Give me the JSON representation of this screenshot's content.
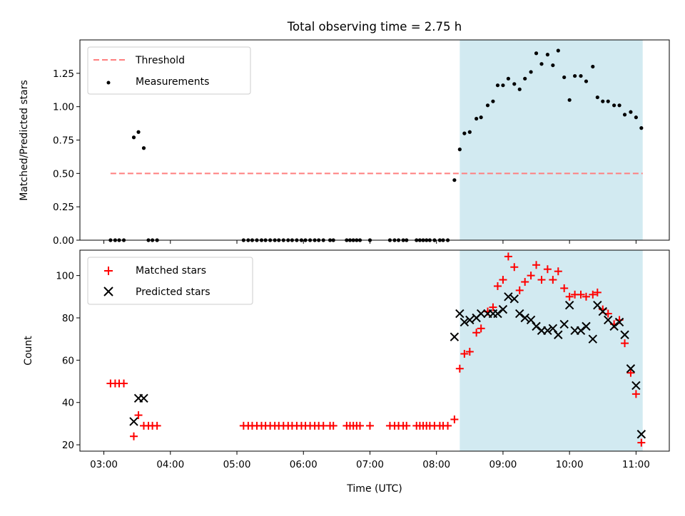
{
  "title": "Total observing time = 2.75 h",
  "xlabel": "Time (UTC)",
  "x_ticks": [
    "03:00",
    "04:00",
    "05:00",
    "06:00",
    "07:00",
    "08:00",
    "09:00",
    "10:00",
    "11:00"
  ],
  "x_tick_values": [
    3,
    4,
    5,
    6,
    7,
    8,
    9,
    10,
    11
  ],
  "colors": {
    "span": "#add8e6",
    "threshold": "#ff7f7f",
    "measurement": "#000000",
    "matched": "#ff0000",
    "predicted": "#000000"
  },
  "chart_data": [
    {
      "type": "scatter",
      "panel": "top",
      "ylabel": "Matched/Predicted stars",
      "xlim": [
        2.64,
        11.5
      ],
      "ylim": [
        0,
        1.5
      ],
      "yticks": [
        "0.00",
        "0.25",
        "0.50",
        "0.75",
        "1.00",
        "1.25"
      ],
      "ytick_values": [
        0,
        0.25,
        0.5,
        0.75,
        1.0,
        1.25
      ],
      "grid": false,
      "legend_placement": "top-left",
      "shaded_span": [
        8.35,
        11.1
      ],
      "threshold": {
        "name": "Threshold",
        "y": 0.5,
        "x_range": [
          3.1,
          11.1
        ]
      },
      "series": [
        {
          "name": "Measurements",
          "x": [
            3.1,
            3.17,
            3.23,
            3.3,
            3.45,
            3.52,
            3.6,
            3.67,
            3.73,
            3.8,
            5.1,
            5.17,
            5.23,
            5.3,
            5.37,
            5.43,
            5.5,
            5.57,
            5.63,
            5.7,
            5.77,
            5.83,
            5.9,
            5.97,
            6.03,
            6.1,
            6.17,
            6.23,
            6.3,
            6.4,
            6.45,
            6.65,
            6.7,
            6.75,
            6.8,
            6.85,
            7.0,
            7.3,
            7.37,
            7.43,
            7.5,
            7.55,
            7.7,
            7.75,
            7.8,
            7.85,
            7.9,
            7.97,
            8.05,
            8.1,
            8.17,
            8.27,
            8.35,
            8.42,
            8.5,
            8.6,
            8.67,
            8.77,
            8.85,
            8.92,
            9.0,
            9.08,
            9.17,
            9.25,
            9.33,
            9.42,
            9.5,
            9.58,
            9.67,
            9.75,
            9.83,
            9.92,
            10.0,
            10.08,
            10.17,
            10.25,
            10.35,
            10.42,
            10.5,
            10.58,
            10.67,
            10.75,
            10.83,
            10.92,
            11.0,
            11.08
          ],
          "y": [
            0,
            0,
            0,
            0,
            0.77,
            0.81,
            0.69,
            0,
            0,
            0,
            0,
            0,
            0,
            0,
            0,
            0,
            0,
            0,
            0,
            0,
            0,
            0,
            0,
            0,
            0,
            0,
            0,
            0,
            0,
            0,
            0,
            0,
            0,
            0,
            0,
            0,
            0,
            0,
            0,
            0,
            0,
            0,
            0,
            0,
            0,
            0,
            0,
            0,
            0,
            0,
            0,
            0.45,
            0.68,
            0.8,
            0.81,
            0.91,
            0.92,
            1.01,
            1.04,
            1.16,
            1.16,
            1.21,
            1.17,
            1.13,
            1.21,
            1.26,
            1.4,
            1.32,
            1.39,
            1.31,
            1.42,
            1.22,
            1.05,
            1.23,
            1.23,
            1.19,
            1.3,
            1.07,
            1.04,
            1.04,
            1.01,
            1.01,
            0.94,
            0.96,
            0.92,
            0.84
          ]
        }
      ]
    },
    {
      "type": "scatter",
      "panel": "bottom",
      "ylabel": "Count",
      "xlim": [
        2.64,
        11.5
      ],
      "ylim": [
        17,
        112
      ],
      "yticks": [
        "20",
        "40",
        "60",
        "80",
        "100"
      ],
      "ytick_values": [
        20,
        40,
        60,
        80,
        100
      ],
      "grid": false,
      "legend_placement": "top-left",
      "shaded_span": [
        8.35,
        11.1
      ],
      "series": [
        {
          "name": "Matched stars",
          "x": [
            3.1,
            3.17,
            3.23,
            3.3,
            3.45,
            3.52,
            3.6,
            3.67,
            3.73,
            3.8,
            5.1,
            5.17,
            5.23,
            5.3,
            5.37,
            5.43,
            5.5,
            5.57,
            5.63,
            5.7,
            5.77,
            5.83,
            5.9,
            5.97,
            6.03,
            6.1,
            6.17,
            6.23,
            6.3,
            6.4,
            6.45,
            6.65,
            6.7,
            6.75,
            6.8,
            6.85,
            7.0,
            7.3,
            7.37,
            7.43,
            7.5,
            7.55,
            7.7,
            7.75,
            7.8,
            7.85,
            7.9,
            7.97,
            8.05,
            8.1,
            8.17,
            8.27,
            8.35,
            8.42,
            8.5,
            8.6,
            8.67,
            8.77,
            8.85,
            8.92,
            9.0,
            9.08,
            9.17,
            9.25,
            9.33,
            9.42,
            9.5,
            9.58,
            9.67,
            9.75,
            9.83,
            9.92,
            10.0,
            10.08,
            10.17,
            10.25,
            10.35,
            10.42,
            10.5,
            10.58,
            10.67,
            10.75,
            10.83,
            10.92,
            11.0,
            11.08
          ],
          "y": [
            49,
            49,
            49,
            49,
            24,
            34,
            29,
            29,
            29,
            29,
            29,
            29,
            29,
            29,
            29,
            29,
            29,
            29,
            29,
            29,
            29,
            29,
            29,
            29,
            29,
            29,
            29,
            29,
            29,
            29,
            29,
            29,
            29,
            29,
            29,
            29,
            29,
            29,
            29,
            29,
            29,
            29,
            29,
            29,
            29,
            29,
            29,
            29,
            29,
            29,
            29,
            32,
            56,
            63,
            64,
            73,
            75,
            83,
            85,
            95,
            98,
            109,
            104,
            93,
            97,
            100,
            105,
            98,
            103,
            98,
            102,
            94,
            90,
            91,
            91,
            90,
            91,
            92,
            84,
            82,
            77,
            79,
            68,
            54,
            44,
            21
          ]
        },
        {
          "name": "Predicted stars",
          "x": [
            3.45,
            3.52,
            3.6,
            8.27,
            8.35,
            8.42,
            8.5,
            8.6,
            8.67,
            8.77,
            8.85,
            8.92,
            9.0,
            9.08,
            9.17,
            9.25,
            9.33,
            9.42,
            9.5,
            9.58,
            9.67,
            9.75,
            9.83,
            9.92,
            10.0,
            10.08,
            10.17,
            10.25,
            10.35,
            10.42,
            10.5,
            10.58,
            10.67,
            10.75,
            10.83,
            10.92,
            11.0,
            11.08
          ],
          "y": [
            31,
            42,
            42,
            71,
            82,
            78,
            79,
            80,
            82,
            82,
            82,
            82,
            84,
            90,
            89,
            82,
            80,
            79,
            76,
            74,
            74,
            75,
            72,
            77,
            86,
            74,
            74,
            76,
            70,
            86,
            83,
            79,
            76,
            78,
            72,
            56,
            48,
            25
          ]
        }
      ]
    }
  ]
}
